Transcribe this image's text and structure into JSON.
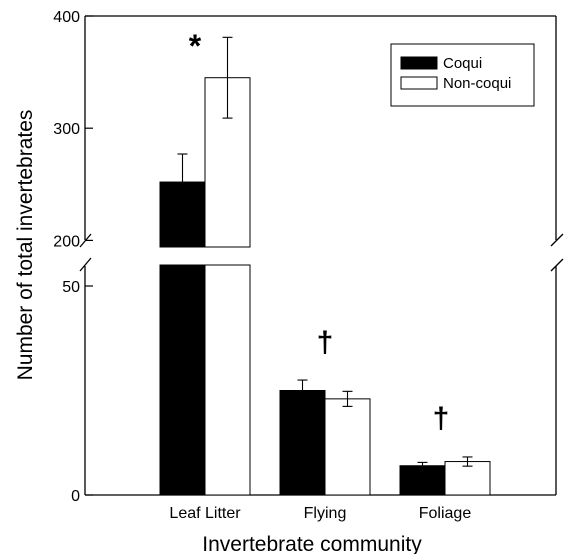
{
  "chart_data": {
    "type": "bar",
    "title": "",
    "xlabel": "Invertebrate community",
    "ylabel": "Number of total invertebrates",
    "categories": [
      "Leaf Litter",
      "Flying",
      "Foliage"
    ],
    "series": [
      {
        "name": "Coqui",
        "color": "#000000",
        "values": [
          252,
          25,
          7
        ],
        "errors": [
          25,
          2.5,
          0.8
        ]
      },
      {
        "name": "Non-coqui",
        "color": "#ffffff",
        "values": [
          345,
          23,
          8
        ],
        "errors": [
          36,
          1.8,
          1.1
        ]
      }
    ],
    "axis_break": true,
    "y_segments": [
      {
        "range": [
          0,
          50
        ],
        "ticks": [
          0,
          50
        ],
        "tick_labels": [
          "0",
          "50"
        ]
      },
      {
        "range": [
          195,
          400
        ],
        "ticks": [
          200,
          300,
          400
        ],
        "tick_labels": [
          "200",
          "300",
          "400"
        ]
      }
    ],
    "annotations": [
      {
        "category": "Leaf Litter",
        "text": "*"
      },
      {
        "category": "Flying",
        "text": "†"
      },
      {
        "category": "Foliage",
        "text": "†"
      }
    ],
    "legend_position": "top-right",
    "grid": false
  }
}
